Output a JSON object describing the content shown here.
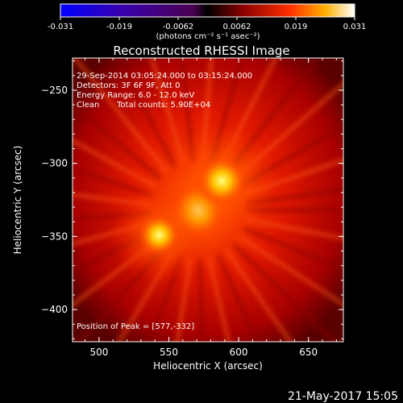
{
  "colorbar": {
    "ticks": [
      "-0.031",
      "-0.019",
      "-0.0062",
      "0.0062",
      "0.019",
      "0.031"
    ],
    "units_label": "(photons cm⁻² s⁻¹ asec⁻²)"
  },
  "chart_data": {
    "type": "heatmap",
    "title": "Reconstructed RHESSI Image",
    "xlabel": "Heliocentric X (arcsec)",
    "ylabel": "Heliocentric Y (arcsec)",
    "xlim": [
      481,
      675
    ],
    "ylim": [
      -422,
      -228
    ],
    "x_ticks": [
      500,
      550,
      600,
      650
    ],
    "y_ticks": [
      -250,
      -300,
      -350,
      -400
    ],
    "colorbar_range": [
      -0.031,
      0.031
    ],
    "colormap": "RHESSI red-yellow-white",
    "sources": [
      {
        "x": 571,
        "y": -332,
        "relative_intensity": 1.0
      },
      {
        "x": 588,
        "y": -312,
        "relative_intensity": 0.8
      },
      {
        "x": 543,
        "y": -349,
        "relative_intensity": 0.6
      }
    ],
    "annotations": {
      "time_range": "29-Sep-2014 03:05:24.000 to 03:15:24.000",
      "detectors": "Detectors: 3F 6F 9F, Att 0",
      "energy_range": "Energy Range: 6.0 - 12.0 keV",
      "algorithm": "Clean",
      "total_counts": "Total counts: 5.90E+04",
      "peak": "Position of Peak = [577,-332]"
    }
  },
  "footer": {
    "date": "21-May-2017 15:05"
  }
}
